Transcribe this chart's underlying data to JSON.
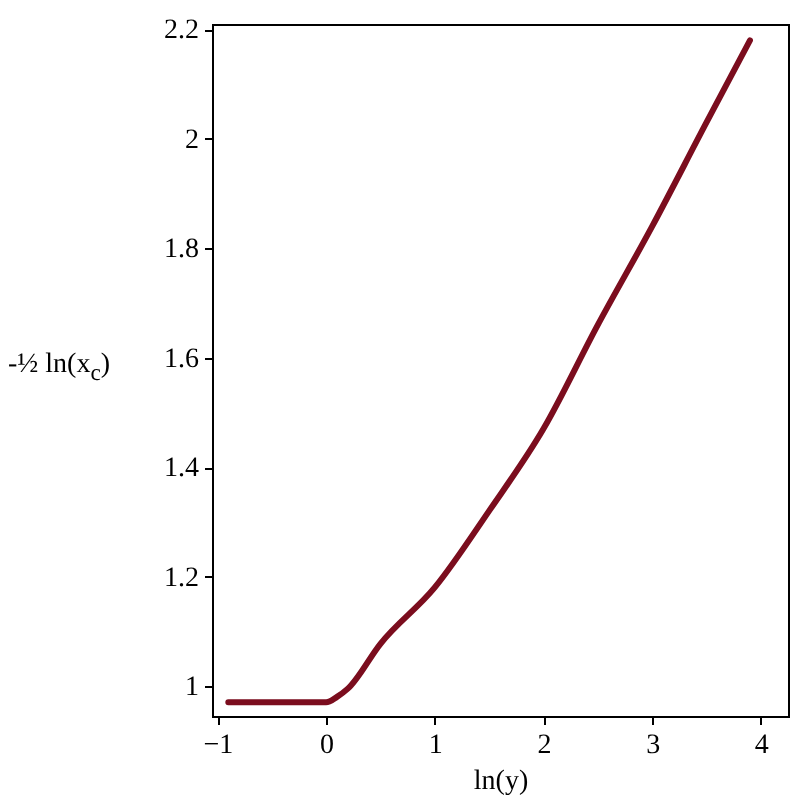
{
  "chart_data": {
    "type": "line",
    "xlabel": "ln(y)",
    "ylabel": "-½ ln(x$_{c}$)",
    "xlim": [
      -1.05,
      4.25
    ],
    "ylim": [
      0.945,
      2.21
    ],
    "xticks": [
      -1,
      0,
      1,
      2,
      3,
      4
    ],
    "yticks": [
      1,
      1.2,
      1.4,
      1.6,
      1.8,
      2,
      2.2
    ],
    "grid": false,
    "marker": "none",
    "line_style": "solid",
    "series": [
      {
        "color": "#7b0d1e",
        "x": [
          -0.9,
          0,
          0.1,
          0.2,
          0.5,
          1,
          1.5,
          2,
          2.5,
          3,
          3.5,
          3.9
        ],
        "values": [
          0.97,
          0.97,
          0.98,
          0.995,
          1.077,
          1.18,
          1.32,
          1.47,
          1.66,
          1.84,
          2.03,
          2.18
        ]
      }
    ]
  }
}
